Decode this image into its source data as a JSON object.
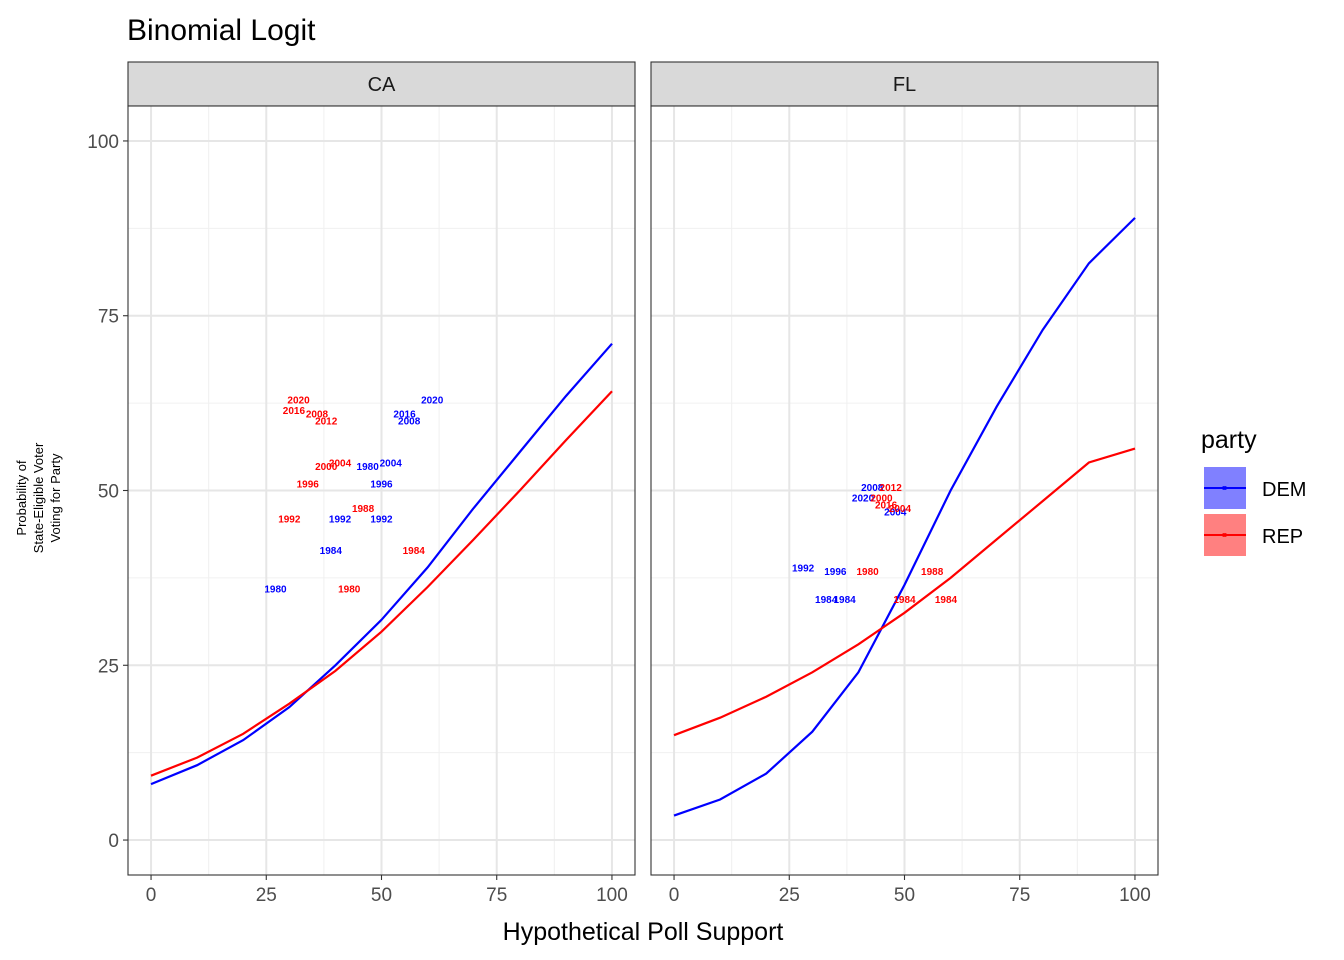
{
  "title": "Binomial Logit",
  "x_axis_title": "Hypothetical Poll Support",
  "y_axis_title_lines": [
    "Probability of",
    "State-Eligible Voter",
    "Voting for Party"
  ],
  "legend": {
    "title": "party",
    "items": [
      {
        "label": "DEM",
        "color": "#0000ff",
        "fill": "#8080ff"
      },
      {
        "label": "REP",
        "color": "#ff0000",
        "fill": "#ff8080"
      }
    ]
  },
  "chart_data": {
    "type": "line",
    "facets": [
      "CA",
      "FL"
    ],
    "xlim": [
      -5,
      105
    ],
    "ylim": [
      -5,
      105
    ],
    "x_ticks": [
      0,
      25,
      50,
      75,
      100
    ],
    "y_ticks": [
      0,
      25,
      50,
      75,
      100
    ],
    "grid": true,
    "legend_position": "right",
    "colors": {
      "DEM": "#0000ff",
      "REP": "#ff0000"
    },
    "series": [
      {
        "facet": "CA",
        "name": "DEM",
        "x": [
          0,
          10,
          20,
          30,
          40,
          50,
          60,
          70,
          80,
          90,
          100
        ],
        "y": [
          8,
          10.7,
          14.3,
          19,
          25,
          31.5,
          39,
          47.5,
          55.5,
          63.5,
          71
        ]
      },
      {
        "facet": "CA",
        "name": "REP",
        "x": [
          0,
          10,
          20,
          30,
          40,
          50,
          60,
          70,
          80,
          90,
          100
        ],
        "y": [
          9.2,
          11.8,
          15.2,
          19.5,
          24.2,
          29.8,
          36.2,
          43,
          50,
          57.2,
          64.2
        ]
      },
      {
        "facet": "FL",
        "name": "DEM",
        "x": [
          0,
          10,
          20,
          30,
          40,
          50,
          60,
          70,
          80,
          90,
          100
        ],
        "y": [
          3.5,
          5.8,
          9.5,
          15.5,
          24,
          36.5,
          50,
          62,
          73,
          82.5,
          89
        ]
      },
      {
        "facet": "FL",
        "name": "REP",
        "x": [
          0,
          10,
          20,
          30,
          40,
          50,
          60,
          70,
          80,
          90,
          100
        ],
        "y": [
          15,
          17.5,
          20.5,
          24,
          28,
          32.5,
          37.5,
          43,
          48.5,
          54,
          56
        ]
      }
    ],
    "point_labels": [
      {
        "facet": "CA",
        "party": "DEM",
        "text": "1980",
        "x": 27,
        "y": 36
      },
      {
        "facet": "CA",
        "party": "DEM",
        "text": "1984",
        "x": 39,
        "y": 41.5
      },
      {
        "facet": "CA",
        "party": "DEM",
        "text": "1992",
        "x": 50,
        "y": 46
      },
      {
        "facet": "CA",
        "party": "DEM",
        "text": "1992",
        "x": 41,
        "y": 46
      },
      {
        "facet": "CA",
        "party": "DEM",
        "text": "1996",
        "x": 50,
        "y": 51
      },
      {
        "facet": "CA",
        "party": "DEM",
        "text": "2004",
        "x": 52,
        "y": 54
      },
      {
        "facet": "CA",
        "party": "DEM",
        "text": "1980",
        "x": 47,
        "y": 53.5
      },
      {
        "facet": "CA",
        "party": "DEM",
        "text": "2016",
        "x": 55,
        "y": 61
      },
      {
        "facet": "CA",
        "party": "DEM",
        "text": "2008",
        "x": 56,
        "y": 60
      },
      {
        "facet": "CA",
        "party": "DEM",
        "text": "2020",
        "x": 61,
        "y": 63
      },
      {
        "facet": "CA",
        "party": "REP",
        "text": "2020",
        "x": 32,
        "y": 63
      },
      {
        "facet": "CA",
        "party": "REP",
        "text": "2016",
        "x": 31,
        "y": 61.5
      },
      {
        "facet": "CA",
        "party": "REP",
        "text": "2008",
        "x": 36,
        "y": 61
      },
      {
        "facet": "CA",
        "party": "REP",
        "text": "2012",
        "x": 38,
        "y": 60
      },
      {
        "facet": "CA",
        "party": "REP",
        "text": "2004",
        "x": 41,
        "y": 54
      },
      {
        "facet": "CA",
        "party": "REP",
        "text": "2000",
        "x": 38,
        "y": 53.5
      },
      {
        "facet": "CA",
        "party": "REP",
        "text": "1996",
        "x": 34,
        "y": 51
      },
      {
        "facet": "CA",
        "party": "REP",
        "text": "1988",
        "x": 46,
        "y": 47.5
      },
      {
        "facet": "CA",
        "party": "REP",
        "text": "1992",
        "x": 30,
        "y": 46
      },
      {
        "facet": "CA",
        "party": "REP",
        "text": "1984",
        "x": 57,
        "y": 41.5
      },
      {
        "facet": "CA",
        "party": "REP",
        "text": "1980",
        "x": 43,
        "y": 36
      },
      {
        "facet": "FL",
        "party": "DEM",
        "text": "1984",
        "x": 33,
        "y": 34.5
      },
      {
        "facet": "FL",
        "party": "DEM",
        "text": "1984",
        "x": 37,
        "y": 34.5
      },
      {
        "facet": "FL",
        "party": "DEM",
        "text": "1992",
        "x": 28,
        "y": 39
      },
      {
        "facet": "FL",
        "party": "DEM",
        "text": "1996",
        "x": 35,
        "y": 38.5
      },
      {
        "facet": "FL",
        "party": "DEM",
        "text": "2004",
        "x": 48,
        "y": 47
      },
      {
        "facet": "FL",
        "party": "DEM",
        "text": "2008",
        "x": 43,
        "y": 50.5
      },
      {
        "facet": "FL",
        "party": "DEM",
        "text": "2020",
        "x": 41,
        "y": 49
      },
      {
        "facet": "FL",
        "party": "REP",
        "text": "1980",
        "x": 42,
        "y": 38.5
      },
      {
        "facet": "FL",
        "party": "REP",
        "text": "1988",
        "x": 56,
        "y": 38.5
      },
      {
        "facet": "FL",
        "party": "REP",
        "text": "1984",
        "x": 50,
        "y": 34.5
      },
      {
        "facet": "FL",
        "party": "REP",
        "text": "1984",
        "x": 59,
        "y": 34.5
      },
      {
        "facet": "FL",
        "party": "REP",
        "text": "2012",
        "x": 47,
        "y": 50.5
      },
      {
        "facet": "FL",
        "party": "REP",
        "text": "2016",
        "x": 46,
        "y": 48
      },
      {
        "facet": "FL",
        "party": "REP",
        "text": "2000",
        "x": 45,
        "y": 49
      },
      {
        "facet": "FL",
        "party": "REP",
        "text": "2004",
        "x": 49,
        "y": 47.5
      }
    ]
  }
}
